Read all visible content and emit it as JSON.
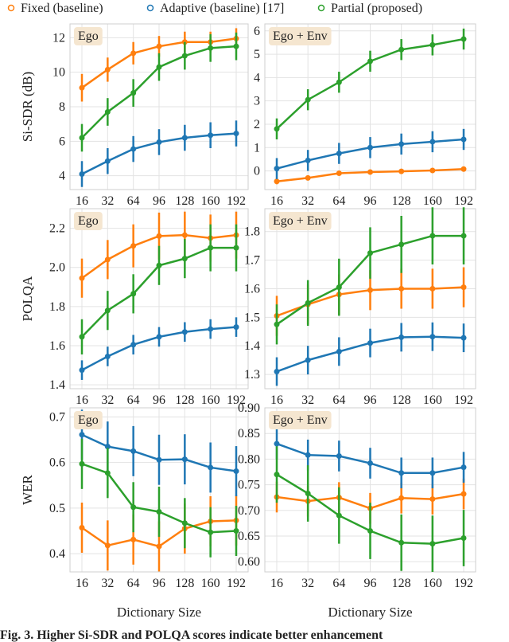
{
  "legend": [
    {
      "name": "Fixed (baseline)",
      "color": "#ff7f0e"
    },
    {
      "name": "Adaptive (baseline) [17]",
      "color": "#1f77b4"
    },
    {
      "name": "Partial (proposed)",
      "color": "#2ca02c"
    }
  ],
  "caption": "Fig. 3. Higher Si-SDR and POLQA scores indicate better enhancement",
  "chart_data": [
    {
      "type": "line",
      "title": "Ego",
      "ylabel": "Si-SDR (dB)",
      "categories": [
        "16",
        "32",
        "64",
        "96",
        "128",
        "160",
        "192"
      ],
      "ylim": [
        3.2,
        12.8
      ],
      "yticks": [
        4,
        6,
        8,
        10,
        12
      ],
      "series": [
        {
          "values": [
            9.1,
            10.15,
            11.1,
            11.5,
            11.75,
            11.75,
            11.95
          ],
          "errors": [
            0.8,
            0.7,
            0.65,
            0.6,
            0.6,
            0.6,
            0.6
          ]
        },
        {
          "values": [
            4.1,
            4.85,
            5.55,
            5.95,
            6.2,
            6.35,
            6.45
          ],
          "errors": [
            0.75,
            0.75,
            0.75,
            0.75,
            0.75,
            0.75,
            0.75
          ]
        },
        {
          "values": [
            6.2,
            7.7,
            8.8,
            10.3,
            10.95,
            11.4,
            11.5
          ],
          "errors": [
            0.8,
            0.8,
            0.8,
            0.8,
            0.8,
            0.8,
            0.8
          ]
        }
      ]
    },
    {
      "type": "line",
      "title": "Ego + Env",
      "categories": [
        "16",
        "32",
        "64",
        "96",
        "128",
        "160",
        "192"
      ],
      "ylim": [
        -0.8,
        6.3
      ],
      "yticks": [
        0,
        1,
        2,
        3,
        4,
        5,
        6
      ],
      "series": [
        {
          "values": [
            -0.45,
            -0.3,
            -0.1,
            -0.05,
            -0.02,
            0.02,
            0.08
          ],
          "errors": [
            0.12,
            0.1,
            0.08,
            0.06,
            0.05,
            0.05,
            0.05
          ]
        },
        {
          "values": [
            0.1,
            0.45,
            0.75,
            1.0,
            1.15,
            1.25,
            1.35
          ],
          "errors": [
            0.45,
            0.45,
            0.45,
            0.45,
            0.45,
            0.45,
            0.45
          ]
        },
        {
          "values": [
            1.8,
            3.05,
            3.8,
            4.7,
            5.2,
            5.4,
            5.65
          ],
          "errors": [
            0.45,
            0.45,
            0.45,
            0.45,
            0.45,
            0.45,
            0.45
          ]
        }
      ]
    },
    {
      "type": "line",
      "title": "Ego",
      "ylabel": "POLQA",
      "categories": [
        "16",
        "32",
        "64",
        "96",
        "128",
        "160",
        "192"
      ],
      "ylim": [
        1.38,
        2.3
      ],
      "yticks": [
        1.4,
        1.6,
        1.8,
        {
          "value": 2,
          "label": "2.0"
        },
        2.2
      ],
      "series": [
        {
          "values": [
            1.945,
            2.04,
            2.11,
            2.16,
            2.165,
            2.15,
            2.165
          ],
          "errors": [
            0.1,
            0.1,
            0.11,
            0.12,
            0.12,
            0.12,
            0.12
          ]
        },
        {
          "values": [
            1.475,
            1.545,
            1.605,
            1.645,
            1.67,
            1.685,
            1.695
          ],
          "errors": [
            0.05,
            0.05,
            0.05,
            0.05,
            0.05,
            0.05,
            0.05
          ]
        },
        {
          "values": [
            1.645,
            1.78,
            1.865,
            2.01,
            2.045,
            2.1,
            2.1
          ],
          "errors": [
            0.09,
            0.1,
            0.1,
            0.1,
            0.1,
            0.12,
            0.12
          ]
        }
      ]
    },
    {
      "type": "line",
      "title": "Ego + Env",
      "categories": [
        "16",
        "32",
        "64",
        "96",
        "128",
        "160",
        "192"
      ],
      "ylim": [
        1.25,
        1.88
      ],
      "yticks": [
        1.3,
        1.4,
        1.5,
        1.6,
        1.7,
        1.8
      ],
      "series": [
        {
          "values": [
            1.505,
            1.545,
            1.58,
            1.595,
            1.6,
            1.6,
            1.605
          ],
          "errors": [
            0.07,
            0.07,
            0.07,
            0.07,
            0.07,
            0.07,
            0.07
          ]
        },
        {
          "values": [
            1.31,
            1.35,
            1.38,
            1.41,
            1.43,
            1.432,
            1.428
          ],
          "errors": [
            0.05,
            0.05,
            0.05,
            0.05,
            0.05,
            0.05,
            0.05
          ]
        },
        {
          "values": [
            1.475,
            1.55,
            1.605,
            1.725,
            1.755,
            1.785,
            1.785
          ],
          "errors": [
            0.07,
            0.08,
            0.1,
            0.09,
            0.1,
            0.1,
            0.1
          ]
        }
      ]
    },
    {
      "type": "line",
      "title": "Ego",
      "ylabel": "WER",
      "xlabel": "Dictionary Size",
      "categories": [
        "16",
        "32",
        "64",
        "96",
        "128",
        "160",
        "192"
      ],
      "ylim": [
        0.36,
        0.72
      ],
      "yticks": [
        0.4,
        0.5,
        0.6,
        0.7
      ],
      "series": [
        {
          "values": [
            0.457,
            0.418,
            0.431,
            0.416,
            0.455,
            0.471,
            0.473
          ],
          "errors": [
            0.055,
            0.055,
            0.055,
            0.055,
            0.055,
            0.055,
            0.055
          ]
        },
        {
          "values": [
            0.661,
            0.635,
            0.625,
            0.606,
            0.607,
            0.589,
            0.581
          ],
          "errors": [
            0.055,
            0.055,
            0.055,
            0.055,
            0.055,
            0.055,
            0.055
          ]
        },
        {
          "values": [
            0.597,
            0.577,
            0.502,
            0.492,
            0.467,
            0.447,
            0.45
          ],
          "errors": [
            0.055,
            0.055,
            0.055,
            0.055,
            0.055,
            0.055,
            0.055
          ]
        }
      ]
    },
    {
      "type": "line",
      "title": "Ego + Env",
      "xlabel": "Dictionary Size",
      "categories": [
        "16",
        "32",
        "64",
        "96",
        "128",
        "160",
        "192"
      ],
      "ylim": [
        0.58,
        0.9
      ],
      "yticks": [
        {
          "value": 0.6,
          "label": "0.60"
        },
        0.65,
        {
          "value": 0.7,
          "label": "0.70"
        },
        0.75,
        {
          "value": 0.8,
          "label": "0.80"
        },
        0.85,
        {
          "value": 0.9,
          "label": "0.90"
        }
      ],
      "series": [
        {
          "values": [
            0.726,
            0.718,
            0.725,
            0.704,
            0.724,
            0.722,
            0.732
          ],
          "errors": [
            0.03,
            0.03,
            0.03,
            0.03,
            0.03,
            0.03,
            0.03
          ]
        },
        {
          "values": [
            0.83,
            0.808,
            0.806,
            0.792,
            0.773,
            0.773,
            0.784
          ],
          "errors": [
            0.03,
            0.03,
            0.03,
            0.03,
            0.03,
            0.03,
            0.03
          ]
        },
        {
          "values": [
            0.77,
            0.733,
            0.69,
            0.66,
            0.637,
            0.635,
            0.646
          ],
          "errors": [
            0.055,
            0.055,
            0.055,
            0.055,
            0.055,
            0.055,
            0.055
          ]
        }
      ]
    }
  ]
}
